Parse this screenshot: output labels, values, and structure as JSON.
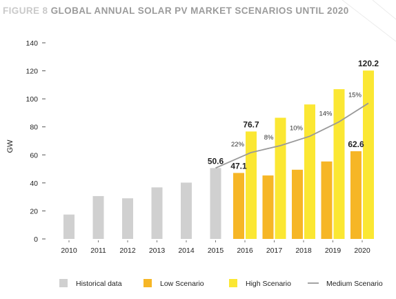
{
  "figure": {
    "label": "FIGURE 8",
    "title": "GLOBAL ANNUAL SOLAR PV MARKET SCENARIOS UNTIL 2020"
  },
  "chart_data": {
    "type": "bar",
    "ylabel": "GW",
    "xlabel": "",
    "ylim": [
      0,
      140
    ],
    "y_ticks": [
      0,
      20,
      40,
      60,
      80,
      100,
      120,
      140
    ],
    "categories": [
      "2010",
      "2011",
      "2012",
      "2013",
      "2014",
      "2015",
      "2016",
      "2017",
      "2018",
      "2019",
      "2020"
    ],
    "series": [
      {
        "name": "Historical data",
        "kind": "bar",
        "color": "#d0d0d0",
        "values": [
          17.4,
          30.6,
          29.0,
          36.8,
          40.2,
          50.6,
          null,
          null,
          null,
          null,
          null
        ]
      },
      {
        "name": "Low Scenario",
        "kind": "bar",
        "color": "#f6b626",
        "values": [
          null,
          null,
          null,
          null,
          null,
          null,
          47.1,
          45.3,
          49.4,
          55.3,
          62.6
        ]
      },
      {
        "name": "High Scenario",
        "kind": "bar",
        "color": "#fbe733",
        "values": [
          null,
          null,
          null,
          null,
          null,
          null,
          76.7,
          86.5,
          96.0,
          106.9,
          120.2
        ]
      },
      {
        "name": "Medium Scenario",
        "kind": "line",
        "color": "#999999",
        "values": [
          null,
          null,
          null,
          null,
          null,
          50.6,
          61.7,
          66.6,
          73.3,
          83.6,
          96.9
        ]
      }
    ],
    "bar_labels": [
      {
        "category": "2015",
        "series": "Historical data",
        "text": "50.6"
      },
      {
        "category": "2016",
        "series": "Low Scenario",
        "text": "47.1"
      },
      {
        "category": "2016",
        "series": "High Scenario",
        "text": "76.7"
      },
      {
        "category": "2020",
        "series": "Low Scenario",
        "text": "62.6"
      },
      {
        "category": "2020",
        "series": "High Scenario",
        "text": "120.2"
      }
    ],
    "growth_labels": [
      {
        "category": "2016",
        "text": "22%"
      },
      {
        "category": "2017",
        "text": "8%"
      },
      {
        "category": "2018",
        "text": "10%"
      },
      {
        "category": "2019",
        "text": "14%"
      },
      {
        "category": "2020",
        "text": "15%"
      }
    ],
    "legend": {
      "placement": "bottom",
      "entries": [
        {
          "name": "Historical data",
          "symbol": "square",
          "color": "#d0d0d0"
        },
        {
          "name": "Low Scenario",
          "symbol": "square",
          "color": "#f6b626"
        },
        {
          "name": "High Scenario",
          "symbol": "square",
          "color": "#fbe733"
        },
        {
          "name": "Medium Scenario",
          "symbol": "line",
          "color": "#999999"
        }
      ]
    },
    "grid": false
  }
}
